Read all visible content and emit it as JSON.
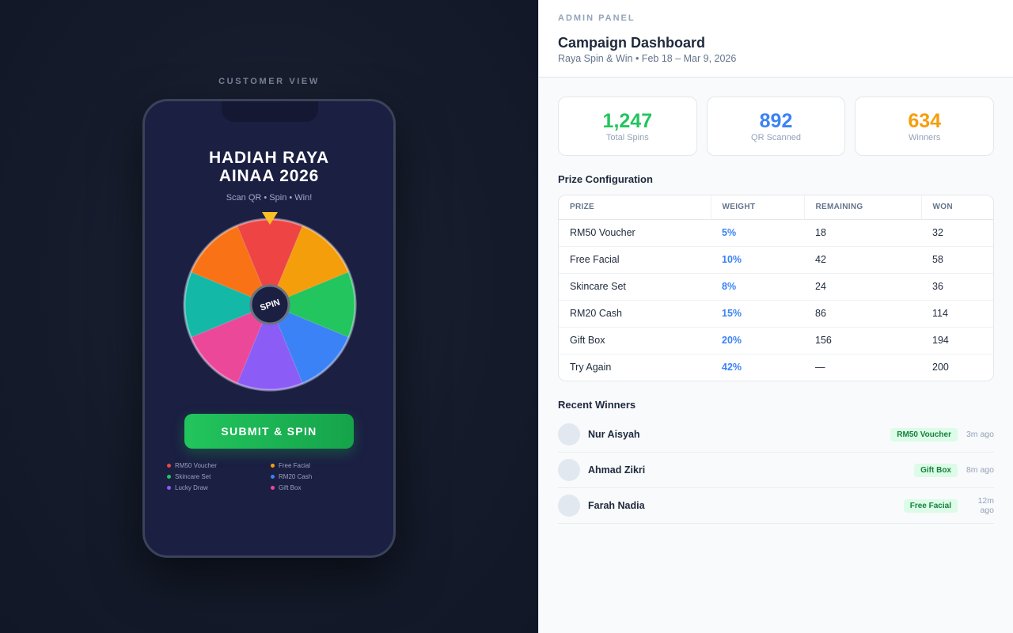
{
  "customer_view": {
    "label": "CUSTOMER VIEW",
    "title_line1": "HADIAH RAYA",
    "title_line2": "AINAA 2026",
    "subtitle": "Scan QR • Spin • Win!",
    "wheel_center_label": "SPIN",
    "wheel_segments": [
      {
        "color": "#ef4444"
      },
      {
        "color": "#f59e0b"
      },
      {
        "color": "#22c55e"
      },
      {
        "color": "#3b82f6"
      },
      {
        "color": "#8b5cf6"
      },
      {
        "color": "#ec4899"
      },
      {
        "color": "#14b8a6"
      },
      {
        "color": "#f97316"
      }
    ],
    "pointer_color": "#fbbf24",
    "submit_button": "SUBMIT & SPIN",
    "legend": [
      {
        "label": "RM50 Voucher",
        "color": "#ef4444"
      },
      {
        "label": "Free Facial",
        "color": "#f59e0b"
      },
      {
        "label": "Skincare Set",
        "color": "#22c55e"
      },
      {
        "label": "RM20 Cash",
        "color": "#3b82f6"
      },
      {
        "label": "Lucky Draw",
        "color": "#8b5cf6"
      },
      {
        "label": "Gift Box",
        "color": "#ec4899"
      }
    ]
  },
  "admin": {
    "label": "ADMIN PANEL",
    "title": "Campaign Dashboard",
    "subtitle": "Raya Spin & Win • Feb 18 – Mar 9, 2026",
    "stats": [
      {
        "value": "1,247",
        "label": "Total Spins",
        "color": "#22c55e"
      },
      {
        "value": "892",
        "label": "QR Scanned",
        "color": "#3b82f6"
      },
      {
        "value": "634",
        "label": "Winners",
        "color": "#f59e0b"
      }
    ],
    "prize_config": {
      "title": "Prize Configuration",
      "headers": [
        "PRIZE",
        "WEIGHT",
        "REMAINING",
        "WON"
      ],
      "rows": [
        [
          "RM50 Voucher",
          "5%",
          "18",
          "32"
        ],
        [
          "Free Facial",
          "10%",
          "42",
          "58"
        ],
        [
          "Skincare Set",
          "8%",
          "24",
          "36"
        ],
        [
          "RM20 Cash",
          "15%",
          "86",
          "114"
        ],
        [
          "Gift Box",
          "20%",
          "156",
          "194"
        ],
        [
          "Try Again",
          "42%",
          "—",
          "200"
        ]
      ]
    },
    "recent_winners": {
      "title": "Recent Winners",
      "items": [
        {
          "name": "Nur Aisyah",
          "prize": "RM50 Voucher",
          "time": "3m ago"
        },
        {
          "name": "Ahmad Zikri",
          "prize": "Gift Box",
          "time": "8m ago"
        },
        {
          "name": "Farah Nadia",
          "prize": "Free Facial",
          "time": "12m ago"
        }
      ]
    }
  }
}
